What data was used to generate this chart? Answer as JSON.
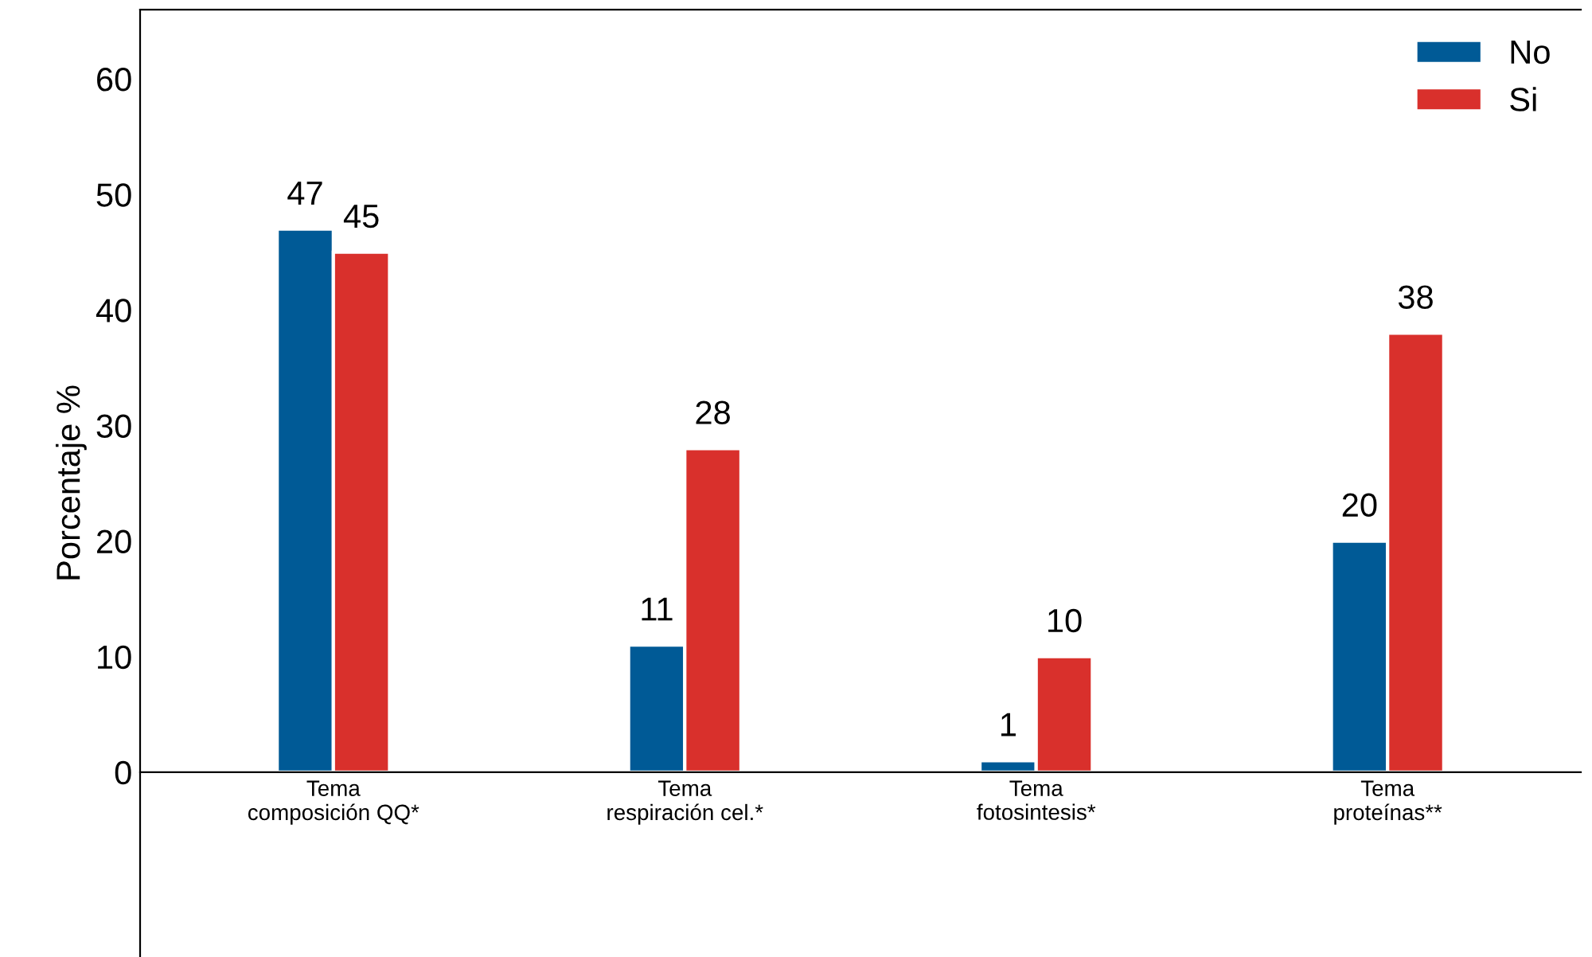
{
  "chart_data": {
    "type": "bar",
    "ylabel": "Porcentaje %",
    "categories": [
      "Tema\ncomposición QQ*",
      "Tema\nrespiración cel.*",
      "Tema\nfotosintesis*",
      "Tema\nproteínas**"
    ],
    "series": [
      {
        "name": "No",
        "color": "#005a96",
        "values": [
          47,
          11,
          1,
          20
        ]
      },
      {
        "name": "Si",
        "color": "#d9302c",
        "values": [
          45,
          28,
          10,
          38
        ]
      }
    ],
    "ylim": [
      -16,
      66
    ],
    "yticks": [
      0,
      10,
      20,
      30,
      40,
      50,
      60
    ],
    "data_labels": true,
    "legend": "top right",
    "grid": false
  }
}
